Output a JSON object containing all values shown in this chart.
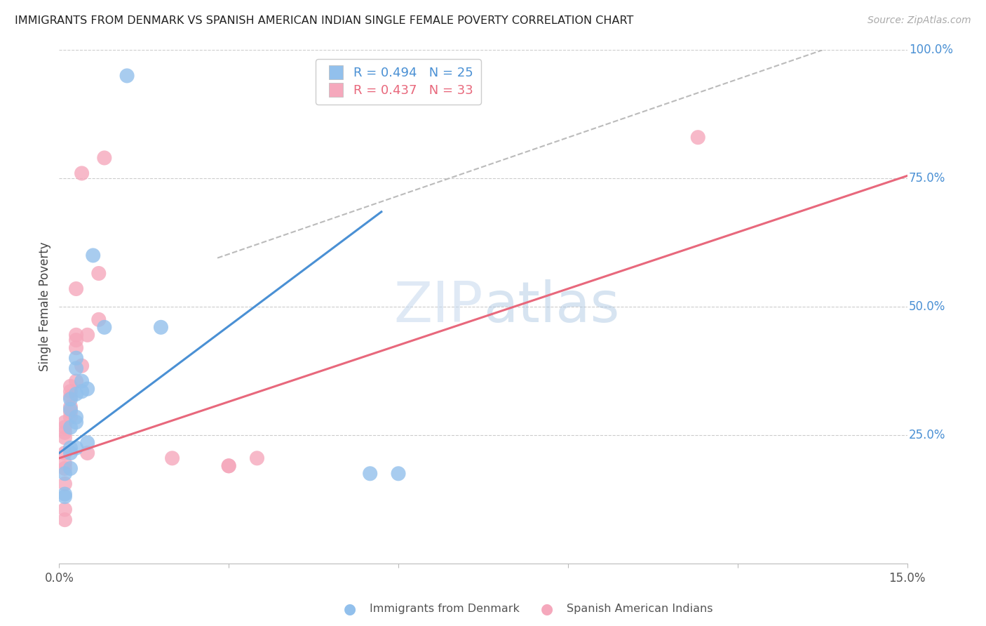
{
  "title": "IMMIGRANTS FROM DENMARK VS SPANISH AMERICAN INDIAN SINGLE FEMALE POVERTY CORRELATION CHART",
  "source": "Source: ZipAtlas.com",
  "ylabel": "Single Female Poverty",
  "legend_label1": "Immigrants from Denmark",
  "legend_label2": "Spanish American Indians",
  "r1": 0.494,
  "n1": 25,
  "r2": 0.437,
  "n2": 33,
  "xlim": [
    0.0,
    0.15
  ],
  "ylim": [
    0.0,
    1.0
  ],
  "ytick_vals": [
    0.25,
    0.5,
    0.75,
    1.0
  ],
  "ytick_labels_right": [
    "25.0%",
    "50.0%",
    "75.0%",
    "100.0%"
  ],
  "color_blue": "#92C0EC",
  "color_pink": "#F5A8BC",
  "color_line_blue": "#4A90D4",
  "color_line_pink": "#E8687C",
  "color_dashed": "#BBBBBB",
  "color_title": "#222222",
  "color_source": "#AAAAAA",
  "color_watermark": "#C5D8EE",
  "color_grid": "#CCCCCC",
  "color_axis_label": "#4A90D4",
  "blue_scatter_x": [
    0.012,
    0.006,
    0.008,
    0.018,
    0.003,
    0.003,
    0.004,
    0.005,
    0.004,
    0.003,
    0.002,
    0.002,
    0.003,
    0.003,
    0.002,
    0.005,
    0.002,
    0.003,
    0.002,
    0.002,
    0.001,
    0.001,
    0.001,
    0.055,
    0.06
  ],
  "blue_scatter_y": [
    0.95,
    0.6,
    0.46,
    0.46,
    0.4,
    0.38,
    0.355,
    0.34,
    0.335,
    0.33,
    0.32,
    0.3,
    0.285,
    0.275,
    0.265,
    0.235,
    0.225,
    0.225,
    0.215,
    0.185,
    0.175,
    0.135,
    0.13,
    0.175,
    0.175
  ],
  "pink_scatter_x": [
    0.008,
    0.004,
    0.007,
    0.003,
    0.007,
    0.005,
    0.003,
    0.003,
    0.003,
    0.004,
    0.003,
    0.002,
    0.002,
    0.002,
    0.002,
    0.002,
    0.002,
    0.001,
    0.001,
    0.001,
    0.001,
    0.001,
    0.001,
    0.001,
    0.001,
    0.02,
    0.005,
    0.035,
    0.03,
    0.03,
    0.001,
    0.001,
    0.113
  ],
  "pink_scatter_y": [
    0.79,
    0.76,
    0.565,
    0.535,
    0.475,
    0.445,
    0.445,
    0.435,
    0.42,
    0.385,
    0.355,
    0.345,
    0.335,
    0.325,
    0.305,
    0.295,
    0.285,
    0.275,
    0.265,
    0.255,
    0.245,
    0.215,
    0.195,
    0.185,
    0.105,
    0.205,
    0.215,
    0.205,
    0.19,
    0.19,
    0.155,
    0.085,
    0.83
  ],
  "blue_line_x": [
    0.0,
    0.057
  ],
  "blue_line_y": [
    0.215,
    0.685
  ],
  "pink_line_x": [
    0.0,
    0.15
  ],
  "pink_line_y": [
    0.205,
    0.755
  ],
  "diag_line_x": [
    0.028,
    0.135
  ],
  "diag_line_y": [
    0.595,
    1.0
  ]
}
